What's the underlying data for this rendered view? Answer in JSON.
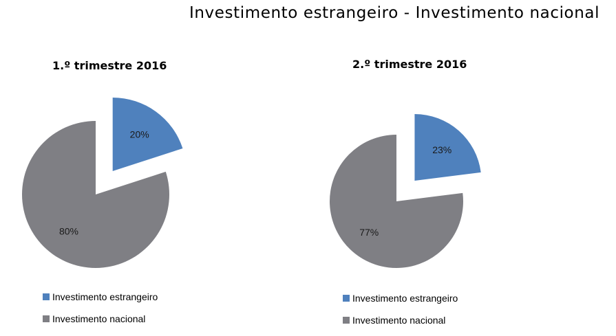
{
  "title": "Investimento estrangeiro - Investimento nacional",
  "colors": {
    "estrangeiro": "#4f81bd",
    "nacional": "#7f7f84"
  },
  "chart_data": [
    {
      "type": "pie",
      "title": "1.º trimestre 2016",
      "categories": [
        "Investimento estrangeiro",
        "Investimento nacional"
      ],
      "values": [
        20,
        80
      ],
      "labels": [
        "20%",
        "80%"
      ],
      "exploded": [
        "Investimento estrangeiro"
      ],
      "legend_position": "bottom"
    },
    {
      "type": "pie",
      "title": "2.º trimestre 2016",
      "categories": [
        "Investimento estrangeiro",
        "Investimento nacional"
      ],
      "values": [
        23,
        77
      ],
      "labels": [
        "23%",
        "77%"
      ],
      "exploded": [
        "Investimento estrangeiro"
      ],
      "legend_position": "bottom"
    }
  ]
}
